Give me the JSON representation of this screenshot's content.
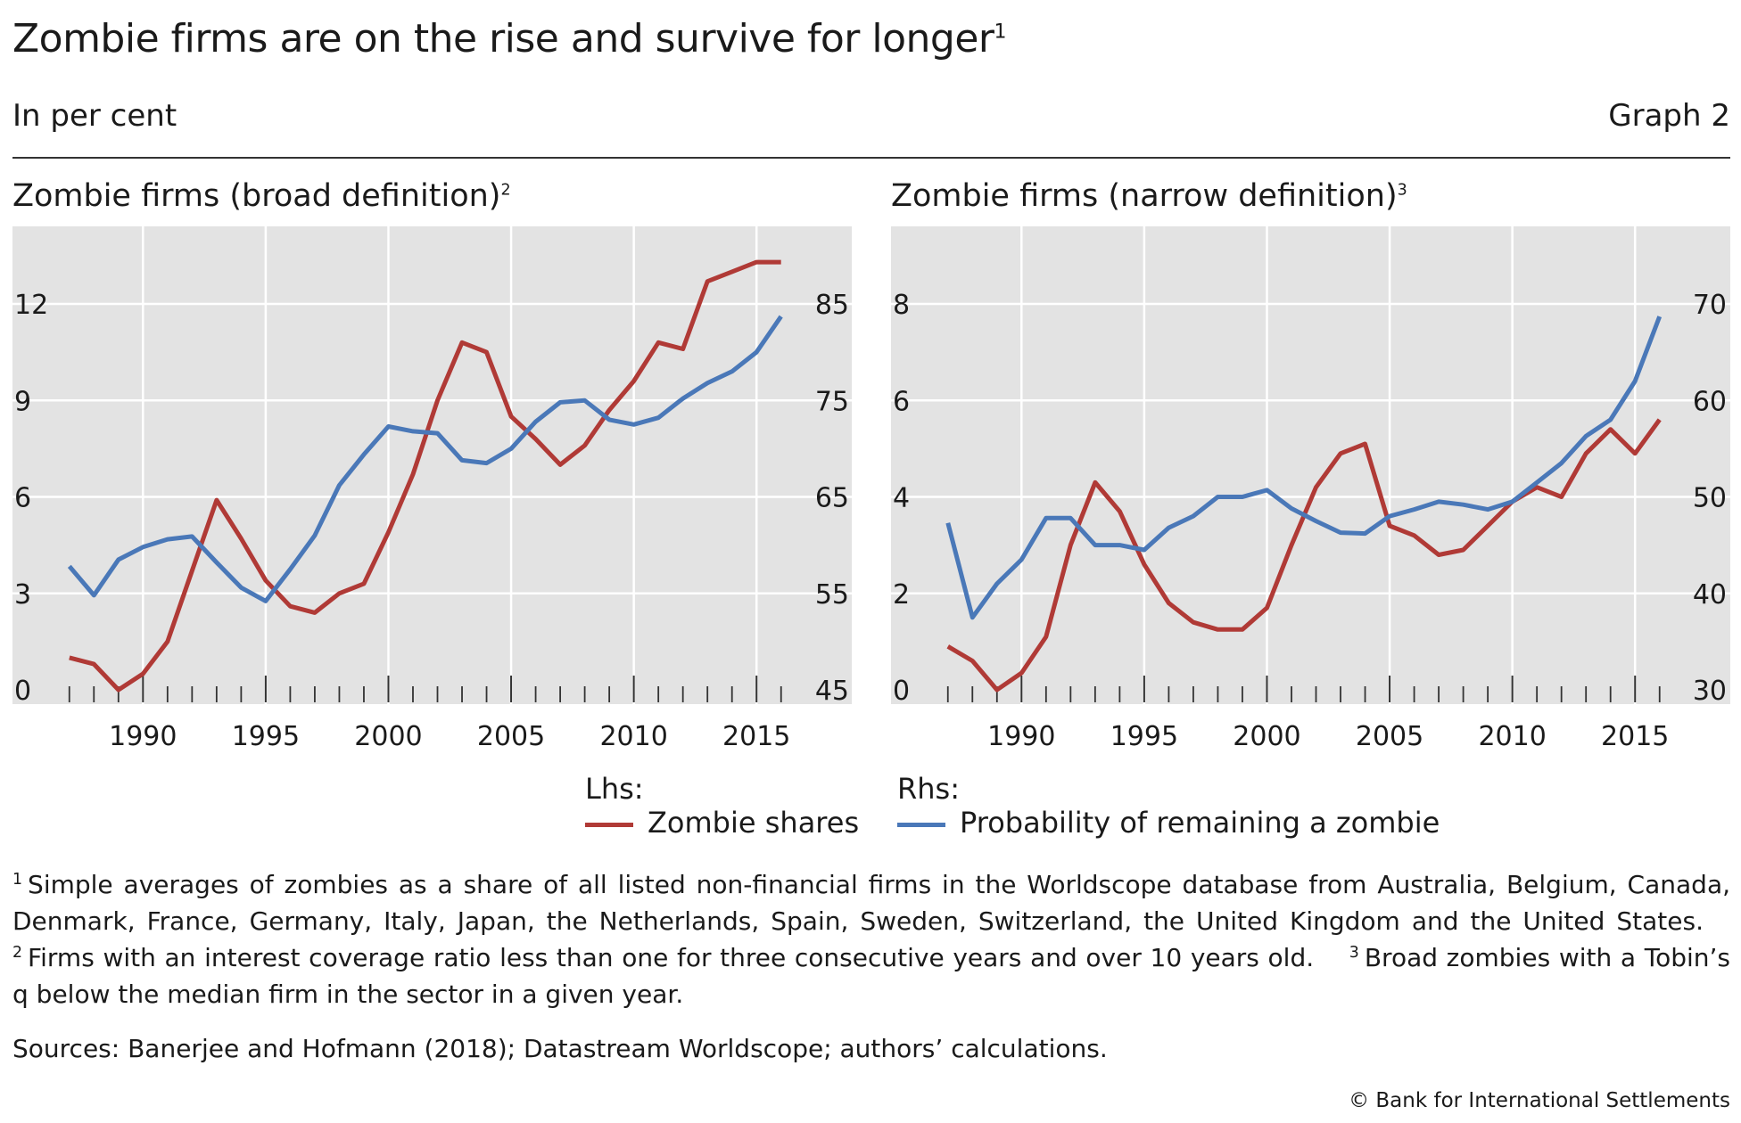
{
  "title": "Zombie firms are on the rise and survive for longer",
  "title_note": "1",
  "subtitle": "In per cent",
  "graph_number": "Graph 2",
  "colors": {
    "zombie_shares": "#b03a36",
    "probability": "#4a78b8",
    "plot_bg": "#e3e3e3",
    "grid": "#ffffff"
  },
  "legend": {
    "lhs_label": "Lhs:",
    "rhs_label": "Rhs:",
    "series1": "Zombie shares",
    "series2": "Probability of remaining a zombie"
  },
  "footnotes": [
    {
      "num": "1",
      "text": "Simple averages of zombies as a share of all listed non-financial firms in the Worldscope database from Australia, Belgium, Canada, Denmark, France, Germany, Italy, Japan, the Netherlands, Spain, Sweden, Switzerland, the United Kingdom and the United States."
    },
    {
      "num": "2",
      "text": "Firms with an interest coverage ratio less than one for three consecutive years and over 10 years old."
    },
    {
      "num": "3",
      "text": "Broad zombies with a Tobin’s q below the median firm in the sector in a given year."
    }
  ],
  "sources": "Sources: Banerjee and Hofmann (2018); Datastream Worldscope; authors’ calculations.",
  "copyright": "© Bank for International Settlements",
  "chart_data": [
    {
      "type": "line",
      "title": "Zombie firms (broad definition)",
      "title_note": "2",
      "x": [
        1987,
        1988,
        1989,
        1990,
        1991,
        1992,
        1993,
        1994,
        1995,
        1996,
        1997,
        1998,
        1999,
        2000,
        2001,
        2002,
        2003,
        2004,
        2005,
        2006,
        2007,
        2008,
        2009,
        2010,
        2011,
        2012,
        2013,
        2014,
        2015,
        2016
      ],
      "xlim": [
        1986.5,
        2016.7
      ],
      "x_ticks": [
        1990,
        1995,
        2000,
        2005,
        2010,
        2015
      ],
      "y_left": {
        "lim": [
          0,
          14.5
        ],
        "ticks": [
          0,
          3,
          6,
          9,
          12
        ]
      },
      "y_right": {
        "lim": [
          45,
          85
        ],
        "ticks": [
          45,
          55,
          65,
          75,
          85
        ],
        "lim_top": 93.3
      },
      "grid": true,
      "series": [
        {
          "name": "Zombie shares",
          "axis": "left",
          "values": [
            1.0,
            0.8,
            0.0,
            0.5,
            1.5,
            3.7,
            5.9,
            4.7,
            3.4,
            2.6,
            2.4,
            3.0,
            3.3,
            4.9,
            6.7,
            9.0,
            10.8,
            10.5,
            8.5,
            7.8,
            7.0,
            7.6,
            8.7,
            9.6,
            10.8,
            10.6,
            12.7,
            13.0,
            13.3,
            13.3
          ]
        },
        {
          "name": "Probability of remaining a zombie",
          "axis": "right",
          "values": [
            57.8,
            54.8,
            58.5,
            59.8,
            60.6,
            60.9,
            58.2,
            55.6,
            54.2,
            57.5,
            61.0,
            66.2,
            69.4,
            72.3,
            71.8,
            71.6,
            68.8,
            68.5,
            70.0,
            72.8,
            74.8,
            75.0,
            73.0,
            72.5,
            73.2,
            75.2,
            76.8,
            78.0,
            80.0,
            83.7
          ]
        }
      ]
    },
    {
      "type": "line",
      "title": "Zombie firms (narrow definition)",
      "title_note": "3",
      "x": [
        1987,
        1988,
        1989,
        1990,
        1991,
        1992,
        1993,
        1994,
        1995,
        1996,
        1997,
        1998,
        1999,
        2000,
        2001,
        2002,
        2003,
        2004,
        2005,
        2006,
        2007,
        2008,
        2009,
        2010,
        2011,
        2012,
        2013,
        2014,
        2015,
        2016
      ],
      "xlim": [
        1986.5,
        2016.7
      ],
      "x_ticks": [
        1990,
        1995,
        2000,
        2005,
        2010,
        2015
      ],
      "y_left": {
        "lim": [
          0,
          9.5
        ],
        "ticks": [
          0,
          2,
          4,
          6,
          8
        ]
      },
      "y_right": {
        "lim": [
          30,
          70
        ],
        "ticks": [
          30,
          40,
          50,
          60,
          70
        ]
      },
      "grid": true,
      "series": [
        {
          "name": "Zombie shares",
          "axis": "left",
          "values": [
            0.9,
            0.6,
            0.0,
            0.35,
            1.1,
            3.0,
            4.3,
            3.7,
            2.6,
            1.8,
            1.4,
            1.25,
            1.25,
            1.7,
            3.0,
            4.2,
            4.9,
            5.1,
            3.4,
            3.2,
            2.8,
            2.9,
            3.4,
            3.9,
            4.2,
            4.0,
            4.9,
            5.4,
            4.9,
            5.6
          ]
        },
        {
          "name": "Probability of remaining a zombie",
          "axis": "right",
          "values": [
            47.3,
            37.5,
            41.0,
            43.5,
            47.8,
            47.8,
            45.0,
            45.0,
            44.5,
            46.8,
            48.0,
            50.0,
            50.0,
            50.7,
            48.8,
            47.5,
            46.3,
            46.2,
            48.0,
            48.7,
            49.5,
            49.2,
            48.7,
            49.5,
            51.5,
            53.5,
            56.3,
            58.0,
            62.0,
            68.7
          ]
        }
      ]
    }
  ]
}
